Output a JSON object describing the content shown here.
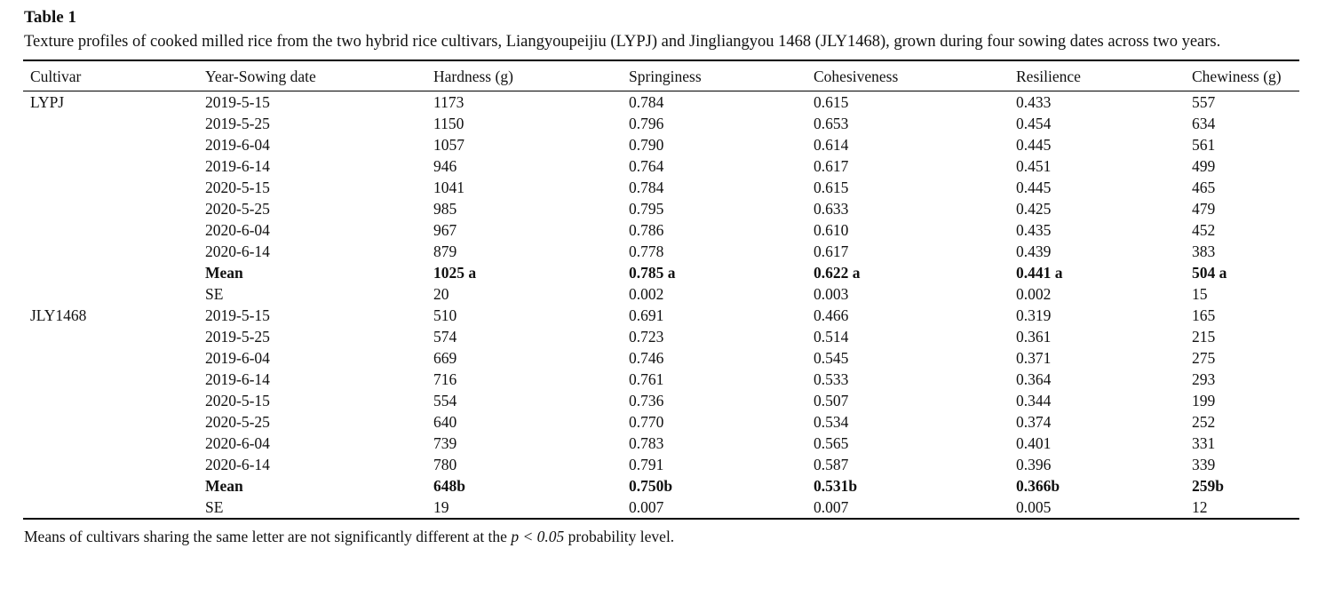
{
  "page": {
    "title": "Table 1",
    "caption": "Texture profiles of cooked milled rice from the two hybrid rice cultivars, Liangyoupeijiu (LYPJ) and Jingliangyou 1468 (JLY1468), grown during four sowing dates across two years.",
    "footnote": {
      "pre": "Means of cultivars sharing the same letter are not significantly different at the ",
      "italic": "p < 0.05",
      "post": " probability level."
    }
  },
  "table": {
    "columns": [
      "Cultivar",
      "Year-Sowing date",
      "Hardness (g)",
      "Springiness",
      "Cohesiveness",
      "Resilience",
      "Chewiness (g)"
    ],
    "rows": [
      {
        "bold": false,
        "cells": [
          "LYPJ",
          "2019-5-15",
          "1173",
          "0.784",
          "0.615",
          "0.433",
          "557"
        ]
      },
      {
        "bold": false,
        "cells": [
          "",
          "2019-5-25",
          "1150",
          "0.796",
          "0.653",
          "0.454",
          "634"
        ]
      },
      {
        "bold": false,
        "cells": [
          "",
          "2019-6-04",
          "1057",
          "0.790",
          "0.614",
          "0.445",
          "561"
        ]
      },
      {
        "bold": false,
        "cells": [
          "",
          "2019-6-14",
          "946",
          "0.764",
          "0.617",
          "0.451",
          "499"
        ]
      },
      {
        "bold": false,
        "cells": [
          "",
          "2020-5-15",
          "1041",
          "0.784",
          "0.615",
          "0.445",
          "465"
        ]
      },
      {
        "bold": false,
        "cells": [
          "",
          "2020-5-25",
          "985",
          "0.795",
          "0.633",
          "0.425",
          "479"
        ]
      },
      {
        "bold": false,
        "cells": [
          "",
          "2020-6-04",
          "967",
          "0.786",
          "0.610",
          "0.435",
          "452"
        ]
      },
      {
        "bold": false,
        "cells": [
          "",
          "2020-6-14",
          "879",
          "0.778",
          "0.617",
          "0.439",
          "383"
        ]
      },
      {
        "bold": true,
        "cells": [
          "",
          "Mean",
          "1025 a",
          "0.785 a",
          "0.622 a",
          "0.441 a",
          "504 a"
        ]
      },
      {
        "bold": false,
        "cells": [
          "",
          "SE",
          "20",
          "0.002",
          "0.003",
          "0.002",
          "15"
        ]
      },
      {
        "bold": false,
        "cells": [
          "JLY1468",
          "2019-5-15",
          "510",
          "0.691",
          "0.466",
          "0.319",
          "165"
        ]
      },
      {
        "bold": false,
        "cells": [
          "",
          "2019-5-25",
          "574",
          "0.723",
          "0.514",
          "0.361",
          "215"
        ]
      },
      {
        "bold": false,
        "cells": [
          "",
          "2019-6-04",
          "669",
          "0.746",
          "0.545",
          "0.371",
          "275"
        ]
      },
      {
        "bold": false,
        "cells": [
          "",
          "2019-6-14",
          "716",
          "0.761",
          "0.533",
          "0.364",
          "293"
        ]
      },
      {
        "bold": false,
        "cells": [
          "",
          "2020-5-15",
          "554",
          "0.736",
          "0.507",
          "0.344",
          "199"
        ]
      },
      {
        "bold": false,
        "cells": [
          "",
          "2020-5-25",
          "640",
          "0.770",
          "0.534",
          "0.374",
          "252"
        ]
      },
      {
        "bold": false,
        "cells": [
          "",
          "2020-6-04",
          "739",
          "0.783",
          "0.565",
          "0.401",
          "331"
        ]
      },
      {
        "bold": false,
        "cells": [
          "",
          "2020-6-14",
          "780",
          "0.791",
          "0.587",
          "0.396",
          "339"
        ]
      },
      {
        "bold": true,
        "cells": [
          "",
          "Mean",
          "648b",
          "0.750b",
          "0.531b",
          "0.366b",
          "259b"
        ]
      },
      {
        "bold": false,
        "cells": [
          "",
          "SE",
          "19",
          "0.007",
          "0.007",
          "0.005",
          "12"
        ]
      }
    ]
  }
}
